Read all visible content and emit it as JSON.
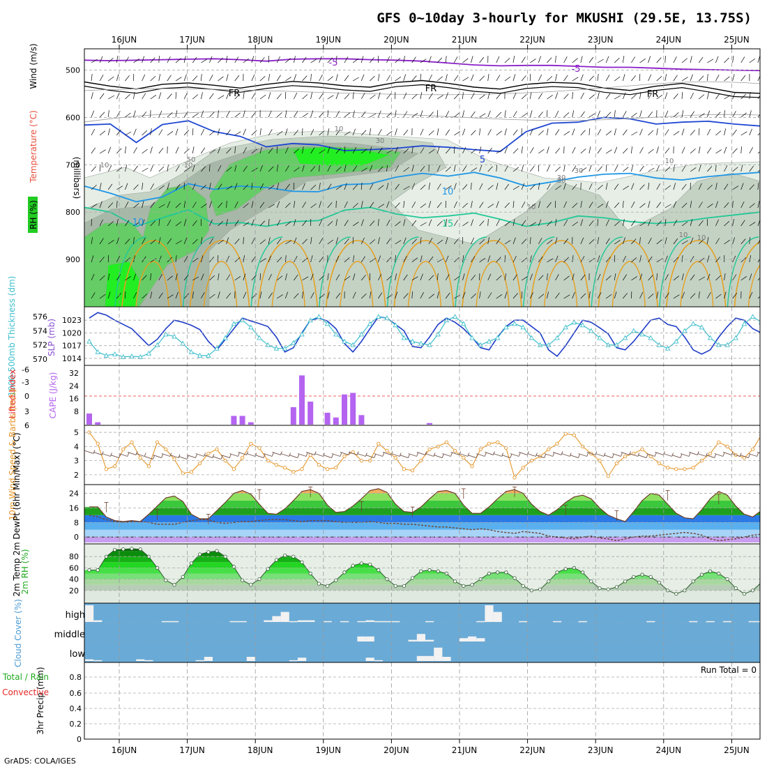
{
  "header": {
    "title": "GFS 0~10day 3-hourly for MKUSHI (29.5E, 13.75S)"
  },
  "footer": {
    "credit": "GrADS: COLA/IGES"
  },
  "dates": [
    "16JUN",
    "17JUN",
    "18JUN",
    "19JUN",
    "20JUN",
    "21JUN",
    "22JUN",
    "23JUN",
    "24JUN",
    "25JUN"
  ],
  "colors": {
    "rh_light": "#e6eee6",
    "rh_mid": "#c4d2c4",
    "rh_dark": "#a8b8a8",
    "rh_green": "#66cc66",
    "rh_bright": "#22ee22",
    "t_purple": "#8a1ec8",
    "t_black": "#000000",
    "t_blue": "#1e46d2",
    "t_lblue": "#1e96e6",
    "t_teal": "#20c896",
    "t_orange": "#e6a020",
    "slp": "#1e3cc8",
    "thickness": "#3cbecc",
    "cape": "#b464f0",
    "lifted": "#e62828",
    "wind": "#e69628",
    "barb": "#6e5046",
    "cloud_bg": "#6aaad6",
    "cloud_bar": "#f2f2f2"
  },
  "chart_data": [
    {
      "type": "heatmap",
      "panel": "upper",
      "ylabel": "(millibars)",
      "legend_labels": [
        "Wind (m/s)",
        "Temperature (°C)",
        "RH (%)"
      ],
      "y_ticks": [
        500,
        600,
        700,
        800,
        900
      ],
      "ylim": [
        1000,
        455
      ],
      "rh_contour_labels": [
        "10",
        "30",
        "50",
        "10",
        "10",
        "30",
        "30",
        "30",
        "10",
        "10",
        "10",
        "10"
      ],
      "temperature_labels": [
        "-5",
        "-5",
        "FR",
        "FR",
        "FR",
        "5",
        "10",
        "10",
        "15"
      ],
      "series": [
        {
          "name": "-5",
          "isobar_mb": [
            479,
            480,
            479,
            478,
            477,
            476,
            478,
            481,
            477,
            476,
            476,
            478,
            479,
            481,
            485,
            489,
            491,
            490,
            490,
            492,
            494,
            494,
            496,
            498,
            499,
            500,
            501
          ]
        },
        {
          "name": "FR",
          "isobar_mb": [
            525,
            534,
            540,
            530,
            527,
            532,
            538,
            530,
            524,
            527,
            533,
            536,
            526,
            522,
            528,
            536,
            540,
            530,
            526,
            528,
            538,
            543,
            534,
            528,
            537,
            547,
            549
          ]
        },
        {
          "name": "5",
          "isobar_mb": [
            616,
            614,
            653,
            615,
            607,
            630,
            640,
            662,
            655,
            658,
            670,
            668,
            665,
            660,
            663,
            668,
            672,
            630,
            612,
            610,
            600,
            603,
            614,
            610,
            608,
            614,
            618
          ]
        },
        {
          "name": "10",
          "isobar_mb": [
            745,
            760,
            778,
            768,
            740,
            752,
            745,
            748,
            756,
            757,
            742,
            740,
            726,
            718,
            724,
            716,
            728,
            745,
            736,
            726,
            720,
            718,
            728,
            732,
            725,
            720,
            716
          ]
        },
        {
          "name": "15",
          "isobar_mb": [
            790,
            800,
            830,
            812,
            795,
            825,
            822,
            830,
            820,
            818,
            796,
            790,
            804,
            812,
            808,
            802,
            815,
            830,
            822,
            808,
            812,
            820,
            824,
            820,
            812,
            806,
            800
          ]
        }
      ]
    },
    {
      "type": "line",
      "panel": "slp_thickness",
      "ylabel_left": "1000-500mb Thickness (dm)",
      "ylabel_right": "SLP (mb)",
      "y_ticks_left": [
        570,
        572,
        574,
        576
      ],
      "y_ticks_right": [
        1014,
        1017,
        1020,
        1023
      ],
      "ylim_left": [
        569.5,
        577
      ],
      "ylim_right": [
        1013,
        1025.5
      ],
      "series": [
        {
          "name": "SLP",
          "values": [
            1023.5,
            1024.8,
            1024.2,
            1023.0,
            1022.0,
            1021.0,
            1019.0,
            1017.0,
            1018.5,
            1021.0,
            1023.0,
            1022.5,
            1021.8,
            1020.8,
            1018.0,
            1016.0,
            1018.5,
            1021.0,
            1023.5,
            1022.8,
            1022.2,
            1021.5,
            1019.0,
            1015.5,
            1016.5,
            1020.0,
            1023.0,
            1023.5,
            1022.8,
            1021.0,
            1017.5,
            1015.5,
            1018.0,
            1021.0,
            1023.8,
            1023.5,
            1022.0,
            1020.5,
            1016.8,
            1016.5,
            1019.0,
            1022.0,
            1023.5,
            1022.5,
            1021.0,
            1019.0,
            1016.5,
            1016.0,
            1019.0,
            1021.5,
            1023.0,
            1023.0,
            1021.5,
            1020.0,
            1016.0,
            1014.5,
            1017.0,
            1020.0,
            1023.0,
            1022.5,
            1021.2,
            1019.8,
            1016.5,
            1016.0,
            1018.0,
            1020.5,
            1023.0,
            1023.5,
            1022.0,
            1021.5,
            1019.0,
            1016.0,
            1015.0,
            1016.0,
            1019.0,
            1021.5,
            1023.5,
            1023.0,
            1021.0,
            1020.0,
            1016.0,
            1016.5,
            1018.5,
            1020.0
          ]
        },
        {
          "name": "Thickness",
          "values": [
            572.5,
            571.0,
            570.5,
            570.7,
            570.3,
            570.4,
            570.3,
            570.8,
            572.0,
            573.5,
            573.2,
            572.2,
            571.0,
            570.5,
            570.5,
            571.5,
            573.0,
            575.0,
            575.5,
            574.5,
            573.0,
            572.0,
            571.5,
            571.5,
            572.3,
            573.5,
            575.5,
            576.0,
            575.0,
            573.5,
            572.5,
            572.0,
            573.5,
            575.0,
            576.0,
            575.8,
            574.8,
            573.0,
            572.5,
            572.2,
            572.0,
            573.5,
            575.5,
            576.0,
            575.0,
            573.0,
            572.0,
            572.5,
            573.0,
            574.5,
            575.0,
            574.5,
            573.0,
            572.0,
            572.0,
            573.0,
            574.5,
            575.2,
            574.8,
            574.0,
            573.0,
            572.0,
            572.0,
            573.0,
            574.0,
            573.5,
            573.0,
            572.0,
            571.5,
            572.5,
            574.0,
            575.0,
            574.5,
            573.0,
            572.0,
            572.0,
            573.0,
            575.0,
            576.0,
            575.2,
            573.5,
            572.5,
            572.0,
            572.5
          ]
        }
      ]
    },
    {
      "type": "bar",
      "panel": "cape_lifted_index",
      "ylabel_left": "Lifted Index",
      "ylabel_right": "CAPE (J/kg)",
      "y_ticks_left": [
        "6",
        "3",
        "0",
        "-3",
        "-6"
      ],
      "y_ticks_right": [
        8,
        16,
        24,
        32
      ],
      "ylim_cape": [
        0,
        36
      ],
      "x_index": [
        0,
        1,
        17,
        18,
        19,
        24,
        25,
        26,
        28,
        29,
        30,
        31,
        32,
        33,
        40
      ],
      "values": [
        7,
        1.5,
        5.5,
        5.5,
        1.5,
        11,
        31,
        14.5,
        7.5,
        4.5,
        19,
        20,
        6,
        0,
        1
      ],
      "lifted_index_zero_line": 0
    },
    {
      "type": "line",
      "panel": "wind10m",
      "ylabel": "10m Wind Speed & Barbs (m/s)",
      "y_ticks": [
        2,
        3,
        4,
        5
      ],
      "ylim": [
        1.5,
        5.3
      ],
      "series": [
        {
          "name": "Speed",
          "values": [
            5.0,
            4.2,
            2.4,
            2.6,
            3.8,
            4.3,
            3.2,
            2.6,
            4.3,
            3.8,
            3.1,
            2.1,
            2.2,
            2.8,
            3.5,
            3.8,
            3.0,
            2.4,
            3.2,
            4.2,
            3.9,
            3.0,
            2.7,
            2.5,
            2.2,
            2.4,
            3.4,
            2.7,
            2.4,
            2.5,
            3.3,
            3.6,
            3.0,
            3.0,
            4.2,
            3.7,
            3.2,
            2.4,
            2.3,
            3.0,
            3.8,
            4.0,
            4.3,
            3.7,
            3.2,
            2.6,
            3.8,
            4.2,
            4.3,
            3.9,
            1.8,
            2.5,
            3.0,
            3.3,
            3.8,
            4.2,
            4.9,
            4.8,
            4.0,
            3.5,
            3.0,
            1.9,
            2.8,
            3.3,
            3.5,
            3.8,
            3.3,
            2.8,
            2.5,
            2.4,
            2.4,
            2.5,
            3.0,
            3.5,
            4.3,
            4.0,
            3.4,
            3.2,
            3.8,
            4.8,
            4.3,
            4.9,
            3.8,
            3.1
          ]
        },
        {
          "name": "Barbs",
          "values": [
            3.6,
            3.5,
            3.4,
            3.3,
            3.4,
            3.5,
            3.4,
            3.2,
            3.3,
            3.4,
            3.3,
            3.2,
            3.3,
            3.4,
            3.3,
            3.2,
            3.3,
            3.4,
            3.5,
            3.4,
            3.3,
            3.4,
            3.5,
            3.4,
            3.3,
            3.4,
            3.5,
            3.4,
            3.3,
            3.4,
            3.5,
            3.5,
            3.4,
            3.3,
            3.4,
            3.5,
            3.4,
            3.3,
            3.4,
            3.5,
            3.4,
            3.3,
            3.4,
            3.5,
            3.4,
            3.3,
            3.4,
            3.5,
            3.4,
            3.3,
            3.4,
            3.5,
            3.4,
            3.3,
            3.4,
            3.5,
            3.4,
            3.3,
            3.4,
            3.5,
            3.4,
            3.3,
            3.4,
            3.5,
            3.4,
            3.3,
            3.4,
            3.5,
            3.4,
            3.3,
            3.4,
            3.5,
            3.4,
            3.3,
            3.4,
            3.5,
            3.4,
            3.3,
            3.4,
            3.5,
            3.4,
            3.3,
            3.4,
            3.5
          ]
        }
      ]
    },
    {
      "type": "area",
      "panel": "temp_dewpoint",
      "ylabel": "2m Temp 2m DewPt (6hr Min/Max) (°C)",
      "y_ticks": [
        0,
        8,
        16,
        24
      ],
      "ylim": [
        -3,
        28
      ],
      "series": [
        {
          "name": "2m Temp",
          "values": [
            16.5,
            16.5,
            11.0,
            9.0,
            8.5,
            9.0,
            8.5,
            12.5,
            17.0,
            21.5,
            22.5,
            19.5,
            12.5,
            10.0,
            10.0,
            14.5,
            19.0,
            24.0,
            25.5,
            23.5,
            18.0,
            13.0,
            12.5,
            15.5,
            20.0,
            25.0,
            26.0,
            24.0,
            17.5,
            13.5,
            14.0,
            17.0,
            21.0,
            25.5,
            26.5,
            24.5,
            18.0,
            14.0,
            13.5,
            16.5,
            21.0,
            25.0,
            25.5,
            24.0,
            17.5,
            13.0,
            13.0,
            16.5,
            21.0,
            25.0,
            26.0,
            24.0,
            18.0,
            14.0,
            12.0,
            15.0,
            19.0,
            22.0,
            23.0,
            21.0,
            16.0,
            12.0,
            10.0,
            8.5,
            14.0,
            20.0,
            24.0,
            23.0,
            18.0,
            13.0,
            10.5,
            10.0,
            15.0,
            21.0,
            25.0,
            23.0,
            17.0,
            12.5,
            11.0,
            14.5,
            20.5,
            25.0,
            23.5,
            17.0
          ]
        },
        {
          "name": "2m DewPt",
          "values": [
            12.0,
            11.0,
            9.5,
            8.5,
            8.0,
            8.5,
            8.5,
            8.0,
            7.0,
            7.0,
            7.0,
            8.0,
            9.0,
            9.5,
            9.5,
            8.0,
            7.5,
            8.0,
            8.5,
            8.5,
            9.0,
            9.5,
            9.5,
            9.5,
            9.0,
            8.5,
            9.0,
            9.0,
            9.0,
            8.5,
            8.0,
            8.0,
            8.0,
            8.5,
            8.0,
            7.5,
            7.5,
            7.0,
            7.0,
            6.5,
            6.0,
            5.5,
            5.5,
            5.0,
            4.5,
            4.0,
            4.5,
            4.0,
            3.0,
            2.5,
            2.0,
            3.0,
            2.5,
            2.0,
            0.5,
            0.0,
            -0.5,
            -1.0,
            0.0,
            0.5,
            -0.5,
            -1.0,
            -2.0,
            -1.0,
            0.0,
            0.5,
            0.5,
            1.0,
            1.5,
            2.0,
            2.5,
            2.0,
            1.0,
            -1.0,
            -2.0,
            -1.5,
            -1.0,
            0.0,
            1.0,
            1.5,
            2.0,
            1.5,
            1.0,
            1.5
          ]
        }
      ]
    },
    {
      "type": "area",
      "panel": "rh2m",
      "ylabel": "2m RH (%)",
      "y_ticks": [
        20,
        40,
        60,
        80
      ],
      "ylim": [
        0,
        100
      ],
      "values": [
        56,
        56,
        80,
        92,
        93,
        94,
        93,
        80,
        60,
        38,
        30,
        44,
        68,
        84,
        88,
        90,
        80,
        62,
        38,
        30,
        40,
        58,
        74,
        82,
        80,
        70,
        50,
        32,
        28,
        38,
        52,
        64,
        68,
        66,
        56,
        40,
        28,
        28,
        42,
        54,
        56,
        54,
        50,
        36,
        28,
        30,
        40,
        50,
        52,
        52,
        42,
        28,
        20,
        22,
        36,
        52,
        58,
        60,
        52,
        36,
        24,
        22,
        26,
        36,
        44,
        48,
        44,
        34,
        20,
        14,
        20,
        36,
        48,
        54,
        50,
        40,
        24,
        14,
        20,
        34,
        42,
        46,
        44,
        40
      ]
    },
    {
      "type": "bar",
      "panel": "cloud_cover",
      "ylabel": "Cloud Cover (%)",
      "level_labels": [
        "high",
        "middle",
        "low"
      ],
      "series": [
        {
          "name": "high",
          "x_index": [
            0,
            1,
            9,
            10,
            17,
            18,
            21,
            22,
            23,
            24,
            25,
            26,
            28,
            30,
            32,
            33,
            34,
            35,
            36,
            40,
            46,
            47,
            48,
            51,
            55,
            58,
            66,
            71,
            73,
            75,
            78,
            79,
            80,
            81
          ],
          "values": [
            100,
            10,
            5,
            5,
            5,
            5,
            10,
            35,
            60,
            5,
            10,
            10,
            5,
            5,
            5,
            10,
            5,
            5,
            5,
            5,
            5,
            100,
            60,
            5,
            5,
            5,
            5,
            5,
            5,
            5,
            5,
            5,
            5,
            5
          ]
        },
        {
          "name": "middle",
          "x_index": [
            32,
            33,
            38,
            39,
            40,
            44,
            45,
            46
          ],
          "values": [
            30,
            30,
            10,
            45,
            10,
            20,
            30,
            20
          ]
        },
        {
          "name": "low",
          "x_index": [
            0,
            1,
            6,
            7,
            13,
            14,
            19,
            24,
            25,
            33,
            34,
            39,
            40,
            41,
            42
          ],
          "values": [
            10,
            5,
            10,
            5,
            5,
            25,
            25,
            5,
            20,
            20,
            5,
            30,
            30,
            80,
            25
          ]
        }
      ]
    },
    {
      "type": "bar",
      "panel": "precip",
      "ylabel": "3hr Precip (mm)",
      "legend_labels": [
        "Total / Rain",
        "Convective"
      ],
      "run_total": "Run Total = 0",
      "y_ticks": [
        "0",
        "0.2",
        "0.4",
        "0.6",
        "0.8"
      ],
      "ylim": [
        0,
        1
      ],
      "values": []
    }
  ]
}
